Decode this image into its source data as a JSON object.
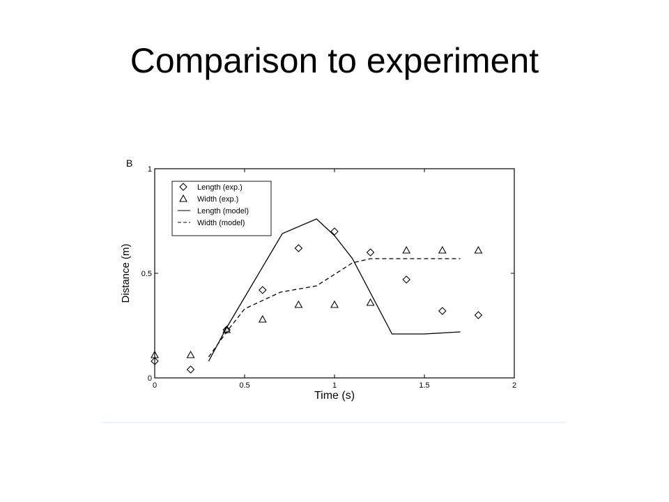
{
  "slide": {
    "title": "Comparison to experiment"
  },
  "chart_data": {
    "type": "line",
    "panel_label": "B",
    "xlabel": "Time (s)",
    "ylabel": "Distance (m)",
    "xlim": [
      0,
      2
    ],
    "ylim": [
      0,
      1
    ],
    "x_ticks": [
      {
        "value": 0,
        "label": "0"
      },
      {
        "value": 0.5,
        "label": "0.5"
      },
      {
        "value": 1,
        "label": "1"
      },
      {
        "value": 1.5,
        "label": "1.5"
      },
      {
        "value": 2,
        "label": "2"
      }
    ],
    "y_ticks": [
      {
        "value": 0,
        "label": "0"
      },
      {
        "value": 0.5,
        "label": "0.5"
      },
      {
        "value": 1,
        "label": "1"
      }
    ],
    "grid": false,
    "legend_position": "top-left",
    "series": [
      {
        "name": "Length (exp.)",
        "kind": "scatter",
        "marker": "diamond",
        "x": [
          0.0,
          0.2,
          0.4,
          0.6,
          0.8,
          1.0,
          1.2,
          1.4,
          1.6,
          1.8
        ],
        "y": [
          0.08,
          0.04,
          0.23,
          0.42,
          0.62,
          0.7,
          0.6,
          0.47,
          0.32,
          0.3
        ]
      },
      {
        "name": "Width (exp.)",
        "kind": "scatter",
        "marker": "triangle",
        "x": [
          0.0,
          0.2,
          0.4,
          0.6,
          0.8,
          1.0,
          1.2,
          1.4,
          1.6,
          1.8
        ],
        "y": [
          0.11,
          0.11,
          0.23,
          0.28,
          0.35,
          0.35,
          0.36,
          0.61,
          0.61,
          0.61
        ]
      },
      {
        "name": "Length (model)",
        "kind": "line",
        "style": "solid",
        "x": [
          0.3,
          0.4,
          0.71,
          0.9,
          1.0,
          1.1,
          1.32,
          1.5,
          1.7
        ],
        "y": [
          0.08,
          0.24,
          0.69,
          0.76,
          0.68,
          0.57,
          0.21,
          0.21,
          0.22
        ]
      },
      {
        "name": "Width (model)",
        "kind": "line",
        "style": "dashed",
        "x": [
          0.3,
          0.4,
          0.5,
          0.7,
          0.9,
          1.1,
          1.2,
          1.4,
          1.7
        ],
        "y": [
          0.1,
          0.22,
          0.33,
          0.41,
          0.44,
          0.55,
          0.57,
          0.57,
          0.57
        ]
      }
    ]
  }
}
